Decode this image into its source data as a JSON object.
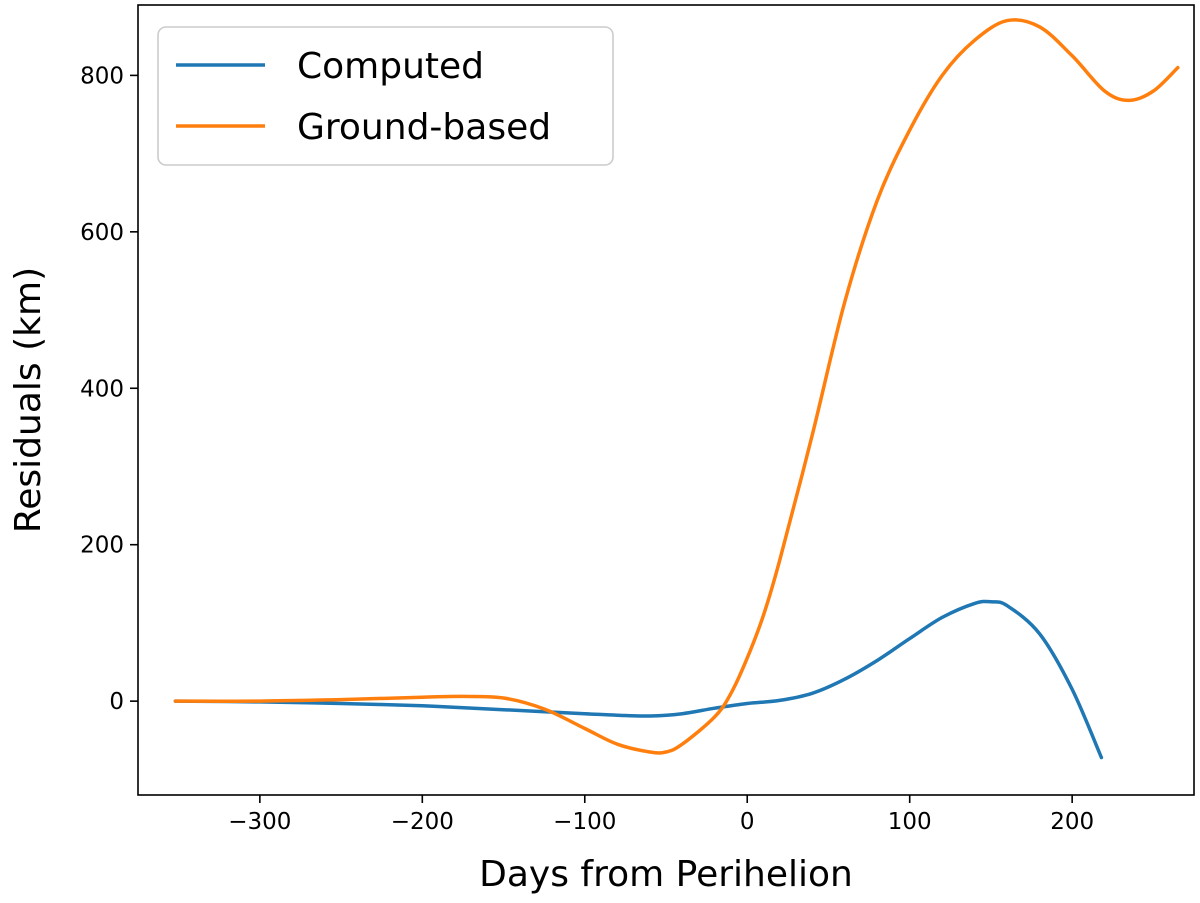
{
  "chart_data": {
    "type": "line",
    "title": "",
    "xlabel": "Days from Perihelion",
    "ylabel": "Residuals (km)",
    "xlim": [
      -375,
      275
    ],
    "ylim": [
      -120,
      890
    ],
    "xticks": [
      -300,
      -200,
      -100,
      0,
      100,
      200
    ],
    "xtick_labels": [
      "−300",
      "−200",
      "−100",
      "0",
      "100",
      "200"
    ],
    "yticks": [
      0,
      200,
      400,
      600,
      800
    ],
    "ytick_labels": [
      "0",
      "200",
      "400",
      "600",
      "800"
    ],
    "grid": false,
    "legend_position": "top-left",
    "series": [
      {
        "name": "Computed",
        "color": "#1f77b4",
        "x": [
          -352,
          -300,
          -250,
          -200,
          -150,
          -100,
          -80,
          -60,
          -40,
          -20,
          0,
          20,
          40,
          60,
          80,
          100,
          120,
          140,
          150,
          160,
          180,
          200,
          218
        ],
        "y": [
          0,
          -1,
          -3,
          -6,
          -11,
          -16,
          -18,
          -19,
          -16,
          -9,
          -3,
          1,
          10,
          28,
          52,
          80,
          107,
          125,
          127,
          122,
          86,
          15,
          -72
        ]
      },
      {
        "name": "Ground-based",
        "color": "#ff7f0e",
        "x": [
          -352,
          -300,
          -250,
          -200,
          -175,
          -150,
          -125,
          -100,
          -80,
          -60,
          -50,
          -40,
          -20,
          -10,
          0,
          10,
          20,
          40,
          60,
          80,
          100,
          120,
          140,
          160,
          180,
          200,
          220,
          235,
          250,
          265
        ],
        "y": [
          0,
          0,
          2,
          5,
          6,
          4,
          -10,
          -35,
          -55,
          -65,
          -65,
          -55,
          -20,
          10,
          55,
          110,
          180,
          340,
          510,
          640,
          730,
          800,
          845,
          870,
          862,
          825,
          780,
          768,
          780,
          810
        ]
      }
    ]
  }
}
